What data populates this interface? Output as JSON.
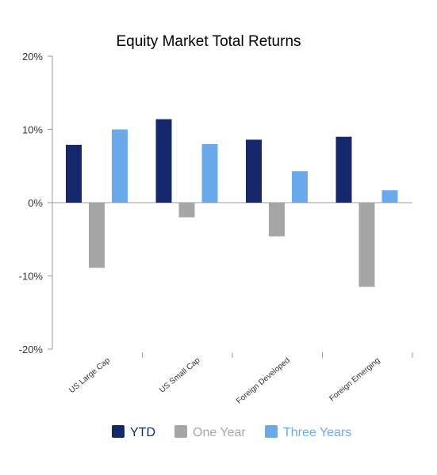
{
  "chart_data": {
    "type": "bar",
    "title": "Equity Market Total Returns",
    "categories": [
      "US Large Cap",
      "US Small Cap",
      "Foreign Developed",
      "Foreign Emerging"
    ],
    "series": [
      {
        "name": "YTD",
        "values": [
          7.9,
          11.4,
          8.6,
          9.0
        ],
        "color": "#14286b"
      },
      {
        "name": "One Year",
        "values": [
          -8.9,
          -2.0,
          -4.6,
          -11.5
        ],
        "color": "#a6a6a6"
      },
      {
        "name": "Three Years",
        "values": [
          10.0,
          8.0,
          4.3,
          1.7
        ],
        "color": "#6aaaea"
      }
    ],
    "ylim": [
      -20,
      20
    ],
    "yticks": [
      "20%",
      "10%",
      "0%",
      "-10%",
      "-20%"
    ],
    "ytick_values": [
      20,
      10,
      0,
      -10,
      -20
    ],
    "xlabel": "",
    "ylabel": "",
    "grid": false,
    "legend_position": "bottom"
  }
}
